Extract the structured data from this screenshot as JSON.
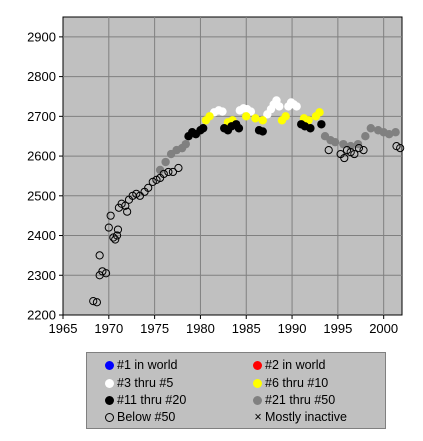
{
  "chart_data": {
    "type": "scatter",
    "x_ticks": [
      1965,
      1970,
      1975,
      1980,
      1985,
      1990,
      1995,
      2000
    ],
    "y_ticks": [
      2200,
      2300,
      2400,
      2500,
      2600,
      2700,
      2800,
      2900
    ],
    "xlim": [
      1965,
      2002
    ],
    "ylim": [
      2200,
      2950
    ],
    "grid": true,
    "legend_position": "bottom",
    "colors": {
      "plot_bg": "#c0c0c0",
      "grid": "#808080",
      "rank1": "#0000ff",
      "rank2": "#ff0000",
      "rank3_5": "#ffffff",
      "rank6_10": "#ffff00",
      "rank11_20": "#000000",
      "rank21_50": "#808080"
    },
    "series": [
      {
        "name": "#1 in world",
        "style": "filled",
        "color": "#0000ff",
        "points": []
      },
      {
        "name": "#2 in world",
        "style": "filled",
        "color": "#ff0000",
        "points": []
      },
      {
        "name": "#3 thru #5",
        "style": "filled",
        "color": "#ffffff",
        "points": [
          [
            1981.5,
            2710
          ],
          [
            1982.0,
            2715
          ],
          [
            1982.4,
            2712
          ],
          [
            1984.3,
            2715
          ],
          [
            1984.7,
            2720
          ],
          [
            1985.1,
            2718
          ],
          [
            1985.5,
            2712
          ],
          [
            1987.3,
            2705
          ],
          [
            1987.7,
            2718
          ],
          [
            1988.0,
            2730
          ],
          [
            1988.3,
            2740
          ],
          [
            1988.6,
            2725
          ],
          [
            1989.6,
            2725
          ],
          [
            1989.9,
            2735
          ],
          [
            1990.2,
            2730
          ],
          [
            1990.5,
            2725
          ]
        ]
      },
      {
        "name": "#6 thru #10",
        "style": "filled",
        "color": "#ffff00",
        "points": [
          [
            1980.6,
            2690
          ],
          [
            1981.0,
            2700
          ],
          [
            1983.0,
            2685
          ],
          [
            1983.5,
            2690
          ],
          [
            1985.0,
            2700
          ],
          [
            1986.0,
            2695
          ],
          [
            1986.8,
            2690
          ],
          [
            1988.9,
            2690
          ],
          [
            1989.3,
            2700
          ],
          [
            1991.3,
            2695
          ],
          [
            1991.8,
            2690
          ],
          [
            1992.6,
            2700
          ],
          [
            1993.0,
            2710
          ]
        ]
      },
      {
        "name": "#11 thru #20",
        "style": "filled",
        "color": "#000000",
        "points": [
          [
            1978.7,
            2650
          ],
          [
            1979.1,
            2660
          ],
          [
            1979.5,
            2655
          ],
          [
            1980.0,
            2665
          ],
          [
            1980.3,
            2670
          ],
          [
            1982.6,
            2670
          ],
          [
            1983.0,
            2665
          ],
          [
            1983.4,
            2675
          ],
          [
            1983.9,
            2680
          ],
          [
            1984.2,
            2670
          ],
          [
            1986.4,
            2665
          ],
          [
            1986.8,
            2662
          ],
          [
            1991.0,
            2680
          ],
          [
            1991.4,
            2675
          ],
          [
            1992.0,
            2670
          ],
          [
            1993.2,
            2680
          ]
        ]
      },
      {
        "name": "#21 thru #50",
        "style": "filled",
        "color": "#808080",
        "points": [
          [
            1975.6,
            2565
          ],
          [
            1976.2,
            2585
          ],
          [
            1976.8,
            2605
          ],
          [
            1977.4,
            2615
          ],
          [
            1978.0,
            2620
          ],
          [
            1978.4,
            2630
          ],
          [
            1993.6,
            2650
          ],
          [
            1994.2,
            2640
          ],
          [
            1994.7,
            2635
          ],
          [
            1995.6,
            2630
          ],
          [
            1996.4,
            2625
          ],
          [
            1997.2,
            2630
          ],
          [
            1998.0,
            2650
          ],
          [
            1998.6,
            2670
          ],
          [
            1999.4,
            2665
          ],
          [
            2000.0,
            2660
          ],
          [
            2000.6,
            2655
          ],
          [
            2001.3,
            2660
          ]
        ]
      },
      {
        "name": "Below #50",
        "style": "open",
        "color": "#000000",
        "points": [
          [
            1968.3,
            2235
          ],
          [
            1968.7,
            2232
          ],
          [
            1969.0,
            2300
          ],
          [
            1969.3,
            2310
          ],
          [
            1969.7,
            2305
          ],
          [
            1969.0,
            2350
          ],
          [
            1970.0,
            2420
          ],
          [
            1970.2,
            2450
          ],
          [
            1970.5,
            2395
          ],
          [
            1970.7,
            2390
          ],
          [
            1970.9,
            2400
          ],
          [
            1971.0,
            2415
          ],
          [
            1971.1,
            2470
          ],
          [
            1971.4,
            2480
          ],
          [
            1971.8,
            2475
          ],
          [
            1972.0,
            2460
          ],
          [
            1972.2,
            2490
          ],
          [
            1972.6,
            2500
          ],
          [
            1973.0,
            2505
          ],
          [
            1973.4,
            2500
          ],
          [
            1973.9,
            2510
          ],
          [
            1974.3,
            2520
          ],
          [
            1974.8,
            2535
          ],
          [
            1975.2,
            2540
          ],
          [
            1975.6,
            2545
          ],
          [
            1976.0,
            2555
          ],
          [
            1976.5,
            2560
          ],
          [
            1977.0,
            2560
          ],
          [
            1977.6,
            2570
          ],
          [
            1994.0,
            2615
          ],
          [
            1995.3,
            2605
          ],
          [
            1995.7,
            2595
          ],
          [
            1996.0,
            2615
          ],
          [
            1996.4,
            2610
          ],
          [
            1996.8,
            2605
          ],
          [
            1997.3,
            2620
          ],
          [
            1997.8,
            2615
          ],
          [
            2001.4,
            2625
          ],
          [
            2001.8,
            2620
          ]
        ]
      },
      {
        "name": "Mostly inactive",
        "style": "cross",
        "color": "#000000",
        "points": []
      }
    ]
  },
  "legend": {
    "items": [
      {
        "label": "#1 in world",
        "kind": "dot",
        "color": "#0000ff"
      },
      {
        "label": "#2 in world",
        "kind": "dot",
        "color": "#ff0000"
      },
      {
        "label": "#3 thru #5",
        "kind": "dot",
        "color": "#ffffff"
      },
      {
        "label": "#6 thru #10",
        "kind": "dot",
        "color": "#ffff00"
      },
      {
        "label": "#11 thru #20",
        "kind": "dot",
        "color": "#000000"
      },
      {
        "label": "#21 thru #50",
        "kind": "dot",
        "color": "#808080"
      },
      {
        "label": "Below #50",
        "kind": "ring",
        "color": "#000000"
      },
      {
        "label": "Mostly inactive",
        "kind": "cross",
        "color": "#000000"
      }
    ]
  }
}
